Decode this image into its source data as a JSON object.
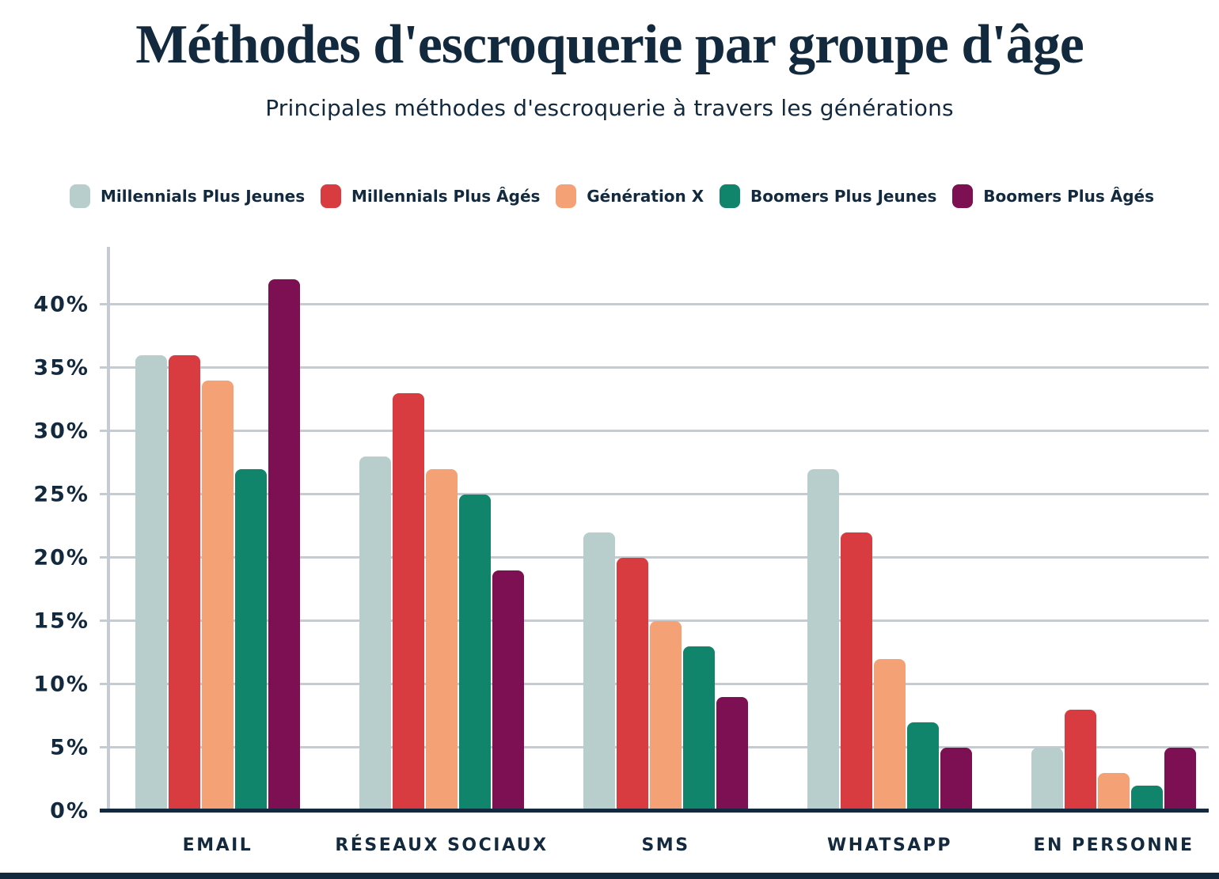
{
  "colors": {
    "text": "#13293d",
    "grid": "#c5cbd3",
    "axis": "#13293d",
    "background": "#ffffff"
  },
  "chart_data": {
    "type": "bar",
    "title": "Méthodes d'escroquerie par groupe d'âge",
    "subtitle": "Principales méthodes d'escroquerie à travers les générations",
    "categories": [
      "EMAIL",
      "RÉSEAUX SOCIAUX",
      "SMS",
      "WHATSAPP",
      "EN PERSONNE"
    ],
    "series": [
      {
        "name": "Millennials Plus Jeunes",
        "color": "#b7cecc",
        "values": [
          36,
          28,
          22,
          27,
          5
        ]
      },
      {
        "name": "Millennials Plus Âgés",
        "color": "#d83c40",
        "values": [
          36,
          33,
          20,
          22,
          8
        ]
      },
      {
        "name": "Génération X",
        "color": "#f3a175",
        "values": [
          34,
          27,
          15,
          12,
          3
        ]
      },
      {
        "name": "Boomers Plus Jeunes",
        "color": "#11846c",
        "values": [
          27,
          25,
          13,
          7,
          2
        ]
      },
      {
        "name": "Boomers Plus Âgés",
        "color": "#7d1052",
        "values": [
          42,
          19,
          9,
          5,
          5
        ]
      }
    ],
    "xlabel": "",
    "ylabel": "",
    "y_ticks": [
      "0%",
      "5%",
      "10%",
      "15%",
      "20%",
      "25%",
      "30%",
      "35%",
      "40%"
    ],
    "ylim": [
      0,
      44
    ],
    "grid": true,
    "legend_position": "top",
    "value_unit": "%"
  }
}
